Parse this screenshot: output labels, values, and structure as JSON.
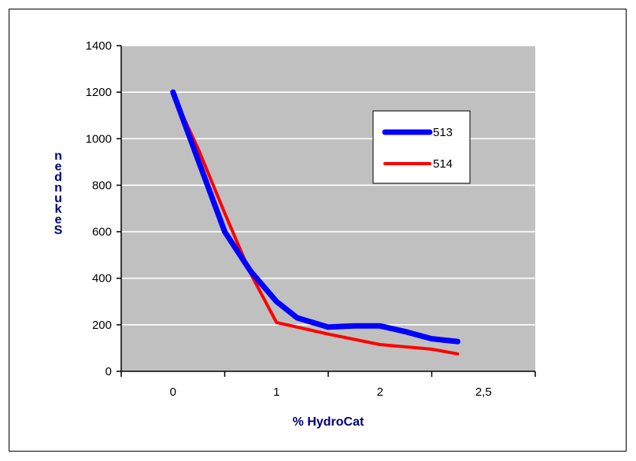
{
  "chart_data": {
    "type": "line",
    "xlabel": "% HydroCat",
    "ylabel": "Sekunden",
    "x_ticks": [
      "0",
      "1",
      "2",
      "2,5"
    ],
    "ylim": [
      0,
      1400
    ],
    "y_ticks": [
      0,
      200,
      400,
      600,
      800,
      1000,
      1200,
      1400
    ],
    "grid": true,
    "legend": "right",
    "series": [
      {
        "name": "513",
        "color": "#0000ff",
        "points": [
          [
            0,
            1200
          ],
          [
            0.25,
            900
          ],
          [
            0.5,
            600
          ],
          [
            0.75,
            430
          ],
          [
            1,
            300
          ],
          [
            1.2,
            230
          ],
          [
            1.5,
            190
          ],
          [
            1.75,
            195
          ],
          [
            2,
            195
          ],
          [
            2.25,
            170
          ],
          [
            2.5,
            140
          ],
          [
            2.75,
            128
          ]
        ]
      },
      {
        "name": "514",
        "color": "#ff0000",
        "points": [
          [
            0,
            1190
          ],
          [
            0.25,
            950
          ],
          [
            0.5,
            680
          ],
          [
            0.75,
            420
          ],
          [
            1,
            210
          ],
          [
            1.5,
            160
          ],
          [
            2,
            115
          ],
          [
            2.5,
            95
          ],
          [
            2.75,
            75
          ]
        ]
      }
    ]
  }
}
